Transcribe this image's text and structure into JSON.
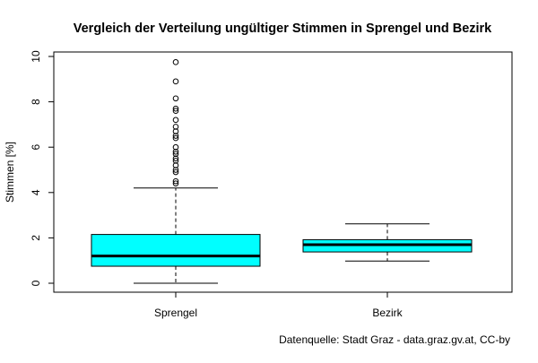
{
  "chart_data": {
    "type": "boxplot",
    "title": "Vergleich der Verteilung ungültiger Stimmen in Sprengel und Bezirk",
    "ylabel": "Stimmen [%]",
    "xlabel": "",
    "ylim": [
      0,
      10
    ],
    "yticks": [
      "0",
      "2",
      "4",
      "6",
      "8",
      "10"
    ],
    "grid": false,
    "box_color": "#00ffff",
    "categories": [
      "Sprengel",
      "Bezirk"
    ],
    "boxes": [
      {
        "label": "Sprengel",
        "min": 0.0,
        "q1": 0.75,
        "median": 1.2,
        "q3": 2.15,
        "max": 4.2,
        "outliers": [
          4.4,
          4.5,
          4.9,
          5.0,
          5.2,
          5.4,
          5.5,
          5.7,
          5.8,
          6.0,
          6.4,
          6.5,
          6.7,
          6.9,
          7.2,
          7.6,
          7.7,
          8.15,
          8.9,
          9.75
        ]
      },
      {
        "label": "Bezirk",
        "min": 0.98,
        "q1": 1.38,
        "median": 1.7,
        "q3": 1.92,
        "max": 2.62,
        "outliers": []
      }
    ],
    "caption": "Datenquelle: Stadt Graz - data.graz.gv.at, CC-by"
  }
}
